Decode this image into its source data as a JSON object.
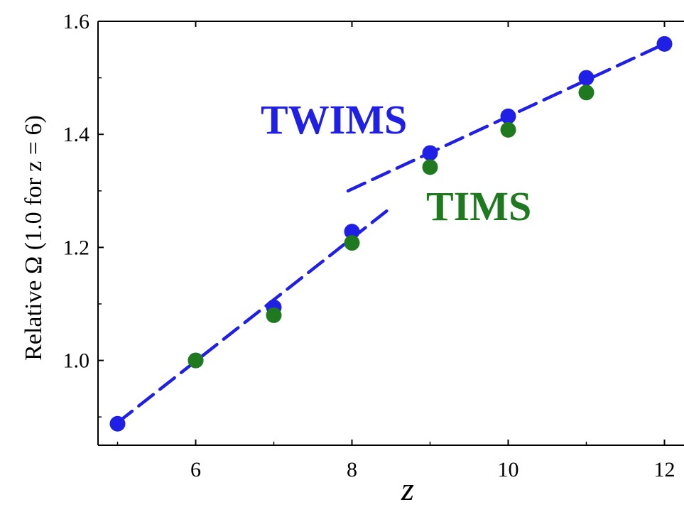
{
  "chart_data": {
    "type": "scatter",
    "title": "",
    "xlabel": "z",
    "ylabel": "Relative Ω (1.0 for z = 6)",
    "xlim": [
      4.75,
      12.25
    ],
    "ylim": [
      0.85,
      1.6
    ],
    "xticks": [
      6,
      8,
      10,
      12
    ],
    "yticks": [
      1.0,
      1.2,
      1.4,
      1.6
    ],
    "xtick_labels": [
      "6",
      "8",
      "10",
      "12"
    ],
    "ytick_labels": [
      "1.0",
      "1.2",
      "1.4",
      "1.6"
    ],
    "grid": false,
    "series": [
      {
        "name": "TWIMS",
        "color": "#1f1fe6",
        "x": [
          5,
          6,
          7,
          8,
          9,
          10,
          11,
          12
        ],
        "values": [
          0.888,
          1.0,
          1.094,
          1.228,
          1.367,
          1.432,
          1.5,
          1.56
        ]
      },
      {
        "name": "TIMS",
        "color": "#1f7a1f",
        "x": [
          6,
          7,
          8,
          9,
          10,
          11
        ],
        "values": [
          1.0,
          1.08,
          1.208,
          1.342,
          1.408,
          1.474
        ]
      }
    ],
    "fit_lines": [
      {
        "color": "#1f1fe6",
        "x": [
          5,
          8.45
        ],
        "values": [
          0.89,
          1.265
        ]
      },
      {
        "color": "#1f1fe6",
        "x": [
          7.95,
          12
        ],
        "values": [
          1.3,
          1.56
        ]
      }
    ]
  }
}
